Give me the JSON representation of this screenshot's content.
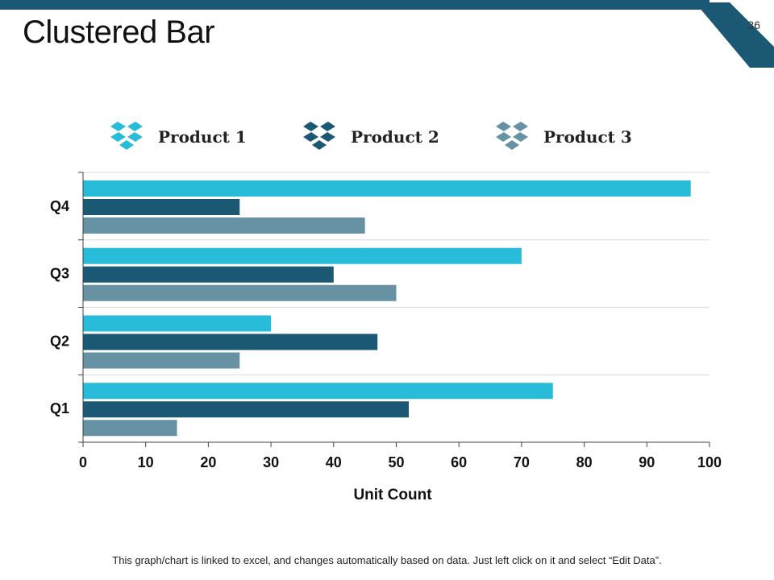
{
  "slide": {
    "title": "Clustered Bar",
    "page_number": "36",
    "footnote": "This graph/chart is linked to excel, and changes automatically based on data. Just left click on it and select “Edit Data”.",
    "accent_color": "#1a5874"
  },
  "legend_icon": "dropbox-box-icon",
  "chart_data": {
    "type": "bar",
    "orientation": "horizontal",
    "title": "",
    "xlabel": "Unit Count",
    "ylabel": "",
    "categories": [
      "Q4",
      "Q3",
      "Q2",
      "Q1"
    ],
    "series": [
      {
        "name": "Product 1",
        "color": "#29bcd8",
        "values": [
          97,
          70,
          30,
          75
        ]
      },
      {
        "name": "Product 2",
        "color": "#1a5874",
        "values": [
          25,
          40,
          47,
          52
        ]
      },
      {
        "name": "Product 3",
        "color": "#6692a4",
        "values": [
          45,
          50,
          25,
          15
        ]
      }
    ],
    "xlim": [
      0,
      100
    ],
    "xticks": [
      "0",
      "10",
      "20",
      "30",
      "40",
      "50",
      "60",
      "70",
      "80",
      "90",
      "100"
    ],
    "grid": true,
    "legend_position": "top"
  }
}
